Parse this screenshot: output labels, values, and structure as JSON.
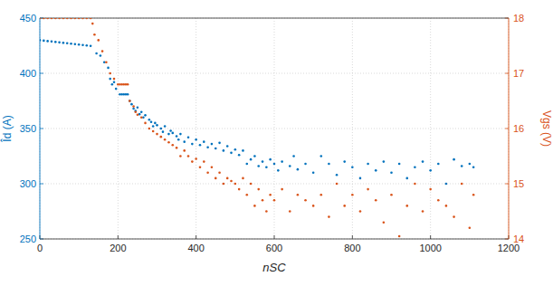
{
  "chart_data": {
    "type": "scatter",
    "x_label": "nSC",
    "y_label": "Îd (A)",
    "y2_label": "Vgs (V)",
    "xlim": [
      0,
      1200
    ],
    "xticks": [
      0,
      200,
      400,
      600,
      800,
      1000,
      1200
    ],
    "ylim": [
      250,
      450
    ],
    "yticks": [
      250,
      300,
      350,
      400,
      450
    ],
    "y2lim": [
      14,
      18
    ],
    "y2ticks": [
      14,
      15,
      16,
      17,
      18
    ],
    "grid": true,
    "marker": "dot",
    "series": [
      {
        "name": "Îd",
        "color": "#0072bd",
        "x": [
          0,
          10,
          20,
          30,
          40,
          50,
          60,
          70,
          80,
          90,
          100,
          110,
          120,
          130,
          145,
          155,
          165,
          175,
          180,
          185,
          190,
          195,
          205,
          210,
          215,
          220,
          225,
          230,
          235,
          240,
          245,
          250,
          255,
          260,
          265,
          270,
          280,
          285,
          290,
          295,
          300,
          310,
          315,
          320,
          330,
          335,
          340,
          350,
          355,
          360,
          370,
          380,
          390,
          400,
          410,
          420,
          430,
          440,
          450,
          460,
          470,
          480,
          490,
          500,
          510,
          520,
          530,
          540,
          550,
          560,
          570,
          580,
          590,
          600,
          610,
          620,
          640,
          650,
          660,
          680,
          700,
          720,
          740,
          760,
          780,
          800,
          820,
          840,
          860,
          880,
          900,
          920,
          940,
          960,
          980,
          1000,
          1020,
          1040,
          1060,
          1080,
          1100,
          1110
        ],
        "values": [
          430,
          429.6,
          429.2,
          428.8,
          428.4,
          428,
          427.6,
          427.2,
          426.8,
          426.4,
          426,
          425.6,
          425.2,
          424.8,
          418,
          416,
          410,
          405,
          395,
          390,
          392,
          386,
          381,
          381,
          381,
          381,
          381,
          375,
          372,
          368,
          366,
          369,
          363,
          365,
          360,
          362,
          358,
          356,
          352,
          355,
          353,
          350,
          347,
          352,
          345,
          348,
          346,
          343,
          340,
          345,
          338,
          342,
          336,
          340,
          335,
          338,
          333,
          336,
          332,
          337,
          330,
          334,
          328,
          331,
          326,
          330,
          318,
          322,
          325,
          316,
          320,
          315,
          322,
          318,
          312,
          320,
          316,
          325,
          313,
          318,
          310,
          325,
          318,
          308,
          320,
          315,
          305,
          318,
          312,
          320,
          310,
          318,
          305,
          315,
          320,
          312,
          318,
          300,
          322,
          316,
          318,
          315
        ]
      },
      {
        "name": "Vgs",
        "color": "#d95319",
        "axis": "y2",
        "x": [
          0,
          10,
          20,
          30,
          40,
          50,
          60,
          70,
          80,
          90,
          100,
          110,
          120,
          130,
          135,
          140,
          150,
          160,
          170,
          180,
          190,
          200,
          205,
          210,
          215,
          220,
          225,
          230,
          240,
          245,
          250,
          260,
          270,
          280,
          290,
          300,
          310,
          320,
          330,
          340,
          350,
          360,
          370,
          380,
          390,
          400,
          410,
          420,
          430,
          440,
          450,
          460,
          470,
          480,
          490,
          500,
          510,
          520,
          530,
          540,
          550,
          560,
          570,
          580,
          590,
          600,
          620,
          640,
          660,
          680,
          700,
          720,
          740,
          760,
          780,
          800,
          820,
          840,
          860,
          880,
          900,
          920,
          940,
          960,
          980,
          1000,
          1020,
          1040,
          1060,
          1080,
          1100,
          1110
        ],
        "values": [
          18,
          18,
          18,
          18,
          18,
          18,
          18,
          18,
          18,
          18,
          18,
          18,
          18,
          18,
          17.9,
          17.7,
          17.6,
          17.4,
          17.2,
          17,
          16.9,
          16.8,
          16.8,
          16.8,
          16.8,
          16.8,
          16.8,
          16.5,
          16.4,
          16.3,
          16.25,
          16.2,
          16.1,
          16,
          15.95,
          15.9,
          15.85,
          15.8,
          15.75,
          15.7,
          15.65,
          15.5,
          15.6,
          15.5,
          15.4,
          15.45,
          15.3,
          15.4,
          15.2,
          15.3,
          15.1,
          15.2,
          15,
          15.1,
          15.05,
          15,
          14.9,
          15.1,
          14.8,
          15,
          14.6,
          14.9,
          14.7,
          14.5,
          14.8,
          14.7,
          14.9,
          14.5,
          14.8,
          14.7,
          14.6,
          14.8,
          14.4,
          15,
          14.6,
          14.8,
          14.5,
          14.9,
          14.7,
          14.3,
          14.8,
          14.05,
          14.6,
          15,
          14.5,
          14.9,
          14.7,
          14.6,
          14.4,
          15,
          14.2,
          14.8
        ]
      }
    ]
  }
}
